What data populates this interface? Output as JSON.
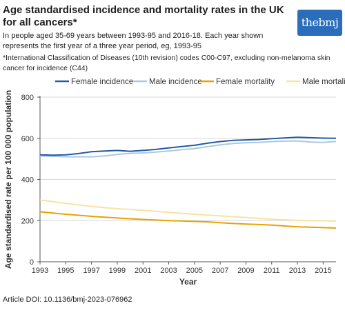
{
  "brand": {
    "logo_text": "thebmj",
    "accent": "#2a6ebb"
  },
  "header": {
    "title": "Age standardised incidence and mortality rates in the UK for all cancers*",
    "subtitle": "In people aged 35-69 years between 1993-95 and 2016-18. Each year shown represents the first year of a three year period, eg, 1993-95",
    "footnote": "*International Classification of Diseases (10th revision) codes C00-C97, excluding non-melanoma skin cancer for incidence (C44)"
  },
  "footer": {
    "doi": "Article DOI: 10.1136/bmj-2023-076962"
  },
  "chart_data": {
    "type": "line",
    "xlabel": "Year",
    "ylabel": "Age standardised rate per 100 000 population",
    "xlim": [
      1993,
      2016
    ],
    "ylim": [
      0,
      800
    ],
    "x_ticks": [
      1993,
      1995,
      1997,
      1999,
      2001,
      2003,
      2005,
      2007,
      2009,
      2011,
      2013,
      2015
    ],
    "y_ticks": [
      0,
      200,
      400,
      600,
      800
    ],
    "grid": "horizontal",
    "legend_position": "top",
    "x": [
      1993,
      1994,
      1995,
      1996,
      1997,
      1998,
      1999,
      2000,
      2001,
      2002,
      2003,
      2004,
      2005,
      2006,
      2007,
      2008,
      2009,
      2010,
      2011,
      2012,
      2013,
      2014,
      2015,
      2016
    ],
    "series": [
      {
        "name": "Female incidence",
        "color": "#1f5aa6",
        "values": [
          520,
          518,
          520,
          526,
          535,
          538,
          541,
          537,
          541,
          546,
          553,
          560,
          566,
          576,
          584,
          590,
          592,
          594,
          598,
          602,
          605,
          603,
          601,
          600
        ]
      },
      {
        "name": "Male incidence",
        "color": "#a9c8e3",
        "values": [
          514,
          512,
          510,
          510,
          510,
          514,
          522,
          527,
          529,
          533,
          538,
          545,
          550,
          559,
          568,
          575,
          578,
          580,
          584,
          586,
          587,
          582,
          580,
          585
        ]
      },
      {
        "name": "Female mortality",
        "color": "#e8a200",
        "values": [
          243,
          237,
          231,
          226,
          221,
          217,
          213,
          209,
          206,
          203,
          200,
          198,
          196,
          194,
          190,
          186,
          183,
          181,
          178,
          174,
          170,
          168,
          166,
          164
        ]
      },
      {
        "name": "Male mortality",
        "color": "#f8e2a4",
        "values": [
          300,
          292,
          284,
          276,
          269,
          263,
          258,
          254,
          250,
          245,
          240,
          235,
          231,
          227,
          223,
          219,
          215,
          211,
          207,
          204,
          202,
          200,
          199,
          198
        ]
      }
    ]
  }
}
